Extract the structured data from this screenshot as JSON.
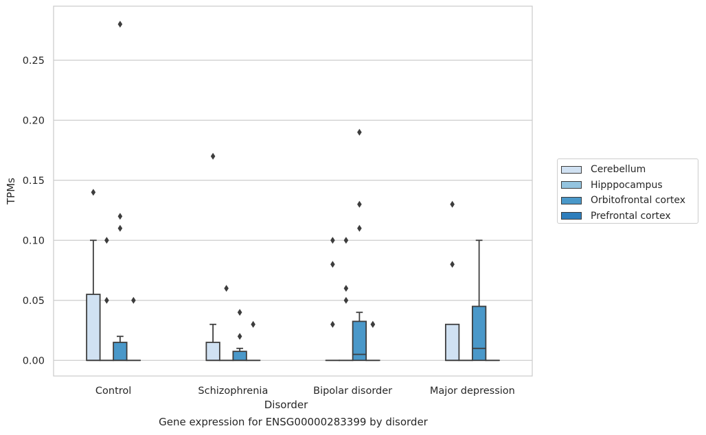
{
  "chart_data": {
    "type": "box",
    "caption": "Gene expression for ENSG00000283399 by disorder",
    "xlabel": "Disorder",
    "ylabel": "TPMs",
    "ylim": [
      -0.013,
      0.295
    ],
    "yticks": [
      "0.00",
      "0.05",
      "0.10",
      "0.15",
      "0.20",
      "0.25"
    ],
    "grid": true,
    "legend_position": "right",
    "categories": [
      "Control",
      "Schizophrenia",
      "Bipolar disorder",
      "Major depression"
    ],
    "series": [
      {
        "name": "Cerebellum",
        "color": "#d0e1f2",
        "boxes": [
          {
            "q1": 0,
            "median": 0,
            "q3": 0.055,
            "whisker_low": 0,
            "whisker_high": 0.1,
            "outliers": [
              0.14
            ]
          },
          {
            "q1": 0,
            "median": 0,
            "q3": 0.015,
            "whisker_low": 0,
            "whisker_high": 0.03,
            "outliers": [
              0.17
            ]
          },
          {
            "q1": 0,
            "median": 0,
            "q3": 0,
            "whisker_low": 0,
            "whisker_high": 0,
            "outliers": [
              0.03,
              0.08,
              0.1
            ]
          },
          {
            "q1": 0,
            "median": 0,
            "q3": 0.03,
            "whisker_low": 0,
            "whisker_high": 0.03,
            "outliers": [
              0.08,
              0.13
            ]
          }
        ]
      },
      {
        "name": "Hipppocampus",
        "color": "#94c4df",
        "boxes": [
          {
            "q1": 0,
            "median": 0,
            "q3": 0,
            "whisker_low": 0,
            "whisker_high": 0,
            "outliers": [
              0.05,
              0.1
            ]
          },
          {
            "q1": 0,
            "median": 0,
            "q3": 0,
            "whisker_low": 0,
            "whisker_high": 0,
            "outliers": [
              0.06
            ]
          },
          {
            "q1": 0,
            "median": 0,
            "q3": 0,
            "whisker_low": 0,
            "whisker_high": 0,
            "outliers": [
              0.05,
              0.06,
              0.1
            ]
          },
          {
            "q1": 0,
            "median": 0,
            "q3": 0,
            "whisker_low": 0,
            "whisker_high": 0,
            "outliers": []
          }
        ]
      },
      {
        "name": "Orbitofrontal cortex",
        "color": "#4a98c9",
        "boxes": [
          {
            "q1": 0,
            "median": 0,
            "q3": 0.015,
            "whisker_low": 0,
            "whisker_high": 0.02,
            "outliers": [
              0.11,
              0.12,
              0.28
            ]
          },
          {
            "q1": 0,
            "median": 0,
            "q3": 0.0075,
            "whisker_low": 0,
            "whisker_high": 0.01,
            "outliers": [
              0.02,
              0.04
            ]
          },
          {
            "q1": 0,
            "median": 0.005,
            "q3": 0.0325,
            "whisker_low": 0,
            "whisker_high": 0.04,
            "outliers": [
              0.11,
              0.13,
              0.19
            ]
          },
          {
            "q1": 0,
            "median": 0.01,
            "q3": 0.045,
            "whisker_low": 0,
            "whisker_high": 0.1,
            "outliers": []
          }
        ]
      },
      {
        "name": "Prefrontal cortex",
        "color": "#2e7ebc",
        "boxes": [
          {
            "q1": 0,
            "median": 0,
            "q3": 0,
            "whisker_low": 0,
            "whisker_high": 0,
            "outliers": [
              0.05
            ]
          },
          {
            "q1": 0,
            "median": 0,
            "q3": 0,
            "whisker_low": 0,
            "whisker_high": 0,
            "outliers": [
              0.03
            ]
          },
          {
            "q1": 0,
            "median": 0,
            "q3": 0,
            "whisker_low": 0,
            "whisker_high": 0,
            "outliers": [
              0.03,
              0.03
            ]
          },
          {
            "q1": 0,
            "median": 0,
            "q3": 0,
            "whisker_low": 0,
            "whisker_high": 0,
            "outliers": []
          }
        ]
      }
    ]
  }
}
